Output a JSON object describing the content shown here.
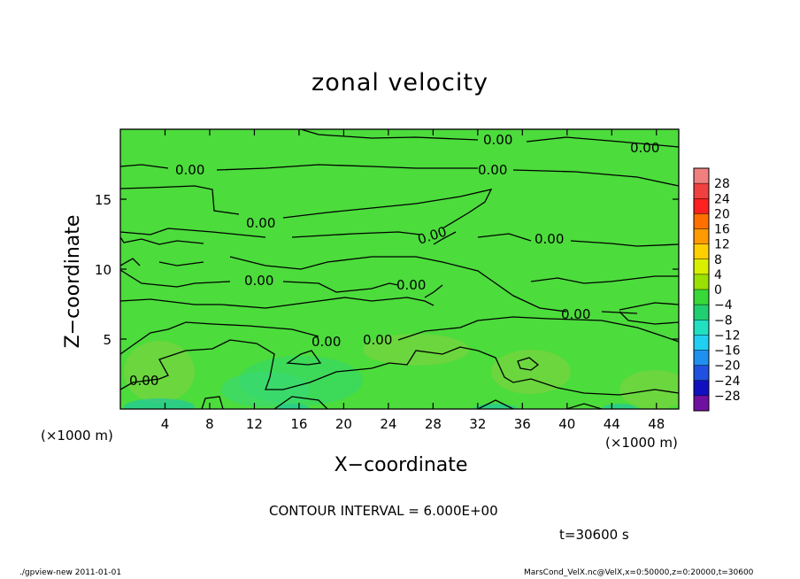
{
  "chart_data": {
    "type": "heatmap",
    "title": "zonal velocity",
    "xlabel": "X−coordinate",
    "ylabel": "Z−coordinate",
    "xunit": "(×1000 m)",
    "xlim": [
      0,
      50
    ],
    "ylim": [
      0,
      20
    ],
    "xticks": [
      4,
      8,
      12,
      16,
      20,
      24,
      28,
      32,
      36,
      40,
      44,
      48
    ],
    "yticks": [
      5,
      10,
      15
    ],
    "contour_interval_text": "CONTOUR INTERVAL = 6.000E+00",
    "contour_label": "0.00",
    "colorbar": {
      "labels": [
        "28",
        "24",
        "20",
        "16",
        "12",
        "8",
        "4",
        "0",
        "−4",
        "−8",
        "−12",
        "−16",
        "−20",
        "−24",
        "−28"
      ],
      "levels": [
        32,
        28,
        24,
        20,
        16,
        12,
        8,
        4,
        0,
        -4,
        -8,
        -12,
        -16,
        -20,
        -24,
        -28,
        -32
      ],
      "colors": [
        "#f08080",
        "#f04040",
        "#ff2020",
        "#ff7000",
        "#ff9a00",
        "#ffd000",
        "#d8f000",
        "#9ae000",
        "#38d838",
        "#20d070",
        "#20e0c0",
        "#20d0f0",
        "#2090f0",
        "#2050e0",
        "#1010c0",
        "#7010a0"
      ]
    },
    "field_color": "#4cdc3c",
    "grid": false
  },
  "time_text": "t=30600 s",
  "footer_left": "./gpview-new   2011-01-01",
  "footer_right": "MarsCond_VelX.nc@VelX,x=0:50000,z=0:20000,t=30600"
}
